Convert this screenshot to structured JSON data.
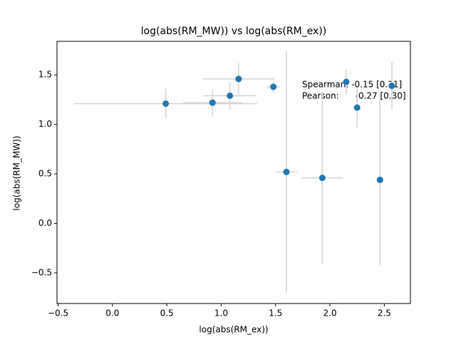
{
  "chart_data": {
    "type": "errorbar-scatter",
    "title": "log(abs(RM_MW)) vs log(abs(RM_ex))",
    "xlabel": "log(abs(RM_ex))",
    "ylabel": "log(abs(RM_MW))",
    "xlim": [
      -0.51,
      2.74
    ],
    "ylim": [
      -0.81,
      1.84
    ],
    "xticks": [
      {
        "value": -0.5,
        "label": "−0.5"
      },
      {
        "value": 0,
        "label": "0.0"
      },
      0.5,
      {
        "value": 1,
        "label": "1.0"
      },
      1.5,
      {
        "value": 2,
        "label": "2.0"
      },
      2.5
    ],
    "yticks": [
      {
        "value": -0.5,
        "label": "−0.5"
      },
      {
        "value": 0,
        "label": "0.0"
      },
      0.5,
      {
        "value": 1,
        "label": "1.0"
      },
      1.5
    ],
    "color": "#1f77b4",
    "error_color": "#d3d3d3",
    "x": [
      0.49,
      0.92,
      1.08,
      1.16,
      1.48,
      1.6,
      1.93,
      2.15,
      2.25,
      2.46,
      2.57
    ],
    "values": [
      1.21,
      1.22,
      1.29,
      1.46,
      1.38,
      0.52,
      0.46,
      1.43,
      1.17,
      0.44,
      1.39
    ],
    "xerr": [
      0.84,
      0.27,
      0.24,
      0.33,
      0.065,
      0.1,
      0.19,
      0.02,
      0.02,
      0.02,
      0.03
    ],
    "yerr": [
      0.15,
      0.13,
      0.14,
      0.16,
      0.06,
      1.22,
      0.87,
      0.13,
      0.2,
      0.86,
      0.24
    ],
    "annotations": [
      "Spearman: -0.15 [0.31]",
      "Pearson:      -0.27 [0.30]"
    ]
  }
}
